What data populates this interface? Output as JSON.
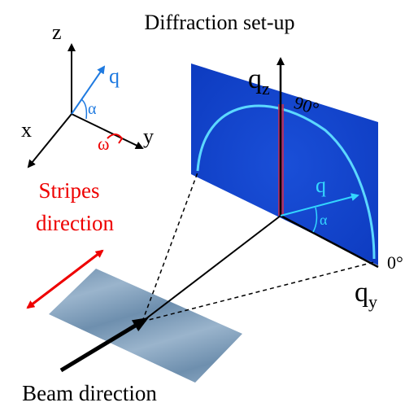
{
  "title": "Diffraction set-up",
  "frame_axes": {
    "z": "z",
    "x": "x",
    "y": "y",
    "q": "q",
    "alpha": "α",
    "omega": "ω"
  },
  "stripes_label": [
    "Stripes",
    "direction"
  ],
  "detector": {
    "qz": {
      "label": "q",
      "subscript": "z"
    },
    "qy": {
      "label": "q",
      "subscript": "y"
    },
    "angle_90": "90°",
    "angle_0": "0°",
    "q": "q",
    "alpha": "α"
  },
  "beam_label": "Beam direction"
}
